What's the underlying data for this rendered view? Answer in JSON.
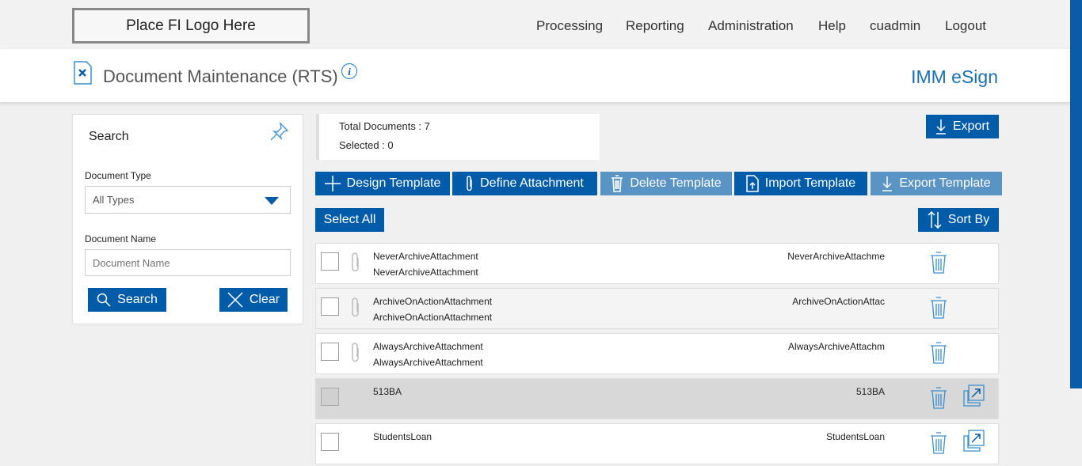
{
  "topbar": {
    "logo": "Place FI Logo Here",
    "nav": [
      "Processing",
      "Reporting",
      "Administration",
      "Help",
      "cuadmin",
      "Logout"
    ]
  },
  "header": {
    "title": "Document Maintenance (RTS)",
    "brand": "IMM eSign"
  },
  "search": {
    "title": "Search",
    "doc_type_label": "Document Type",
    "doc_type_value": "All Types",
    "doc_name_label": "Document Name",
    "doc_name_placeholder": "Document Name",
    "search_btn": "Search",
    "clear_btn": "Clear"
  },
  "stats": {
    "total": "Total Documents : 7",
    "selected": "Selected : 0"
  },
  "toolbar": {
    "export": "Export",
    "design": "Design Template",
    "define": "Define Attachment",
    "delete": "Delete Template",
    "import": "Import Template",
    "export_template": "Export Template",
    "select_all": "Select All",
    "sort_by": "Sort By"
  },
  "colors": {
    "primary": "#005ca8",
    "disabled": "#5a94c4",
    "scrollbar": "#0a5ca8"
  },
  "rows": [
    {
      "name": "NeverArchiveAttachment",
      "desc": "NeverArchiveAttachment",
      "right": "NeverArchiveAttachme",
      "attachment": true,
      "external": false
    },
    {
      "name": "ArchiveOnActionAttachment",
      "desc": "ArchiveOnActionAttachment",
      "right": "ArchiveOnActionAttac",
      "attachment": true,
      "external": false
    },
    {
      "name": "AlwaysArchiveAttachment",
      "desc": "AlwaysArchiveAttachment",
      "right": "AlwaysArchiveAttachm",
      "attachment": true,
      "external": false
    },
    {
      "name": "513BA",
      "desc": "",
      "right": "513BA",
      "attachment": false,
      "external": true,
      "highlighted": true
    },
    {
      "name": "StudentsLoan",
      "desc": "",
      "right": "StudentsLoan",
      "attachment": false,
      "external": true
    }
  ]
}
